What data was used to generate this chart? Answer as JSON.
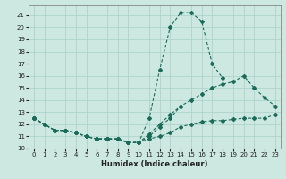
{
  "xlabel": "Humidex (Indice chaleur)",
  "background_color": "#cde8e0",
  "grid_color": "#a8d0c8",
  "line_color": "#1a6b5a",
  "xlim": [
    -0.5,
    23.5
  ],
  "ylim": [
    10.0,
    21.8
  ],
  "yticks": [
    10,
    11,
    12,
    13,
    14,
    15,
    16,
    17,
    18,
    19,
    20,
    21
  ],
  "xticks": [
    0,
    1,
    2,
    3,
    4,
    5,
    6,
    7,
    8,
    9,
    10,
    11,
    12,
    13,
    14,
    15,
    16,
    17,
    18,
    19,
    20,
    21,
    22,
    23
  ],
  "series": [
    {
      "x": [
        0,
        1,
        2,
        3,
        4,
        5,
        6,
        7,
        8,
        9,
        10,
        11,
        12,
        13,
        14,
        15,
        16,
        17,
        18
      ],
      "y": [
        12.5,
        12.0,
        11.5,
        11.5,
        11.3,
        11.0,
        10.8,
        10.8,
        10.8,
        10.5,
        10.5,
        12.5,
        16.5,
        20.0,
        21.2,
        21.2,
        20.5,
        17.0,
        15.8
      ]
    },
    {
      "x": [
        0,
        1,
        2,
        3,
        4,
        5,
        6,
        7,
        8,
        9,
        10,
        11,
        12,
        13,
        14,
        15,
        16,
        17,
        18,
        19,
        20,
        21,
        22,
        23
      ],
      "y": [
        12.5,
        12.0,
        11.5,
        11.5,
        11.3,
        11.0,
        10.8,
        10.8,
        10.8,
        10.5,
        10.5,
        11.2,
        12.0,
        12.8,
        13.5,
        14.0,
        14.5,
        15.0,
        15.3,
        15.5,
        16.0,
        15.0,
        14.2,
        13.5
      ]
    },
    {
      "x": [
        0,
        1,
        2,
        3,
        4,
        5,
        6,
        7,
        8,
        9,
        10,
        11,
        12,
        13,
        14,
        15,
        16,
        17,
        18,
        19,
        20,
        21,
        22,
        23
      ],
      "y": [
        12.5,
        12.0,
        11.5,
        11.5,
        11.3,
        11.0,
        10.8,
        10.8,
        10.8,
        10.5,
        10.5,
        10.8,
        11.0,
        11.3,
        11.8,
        12.0,
        12.2,
        12.3,
        12.3,
        12.4,
        12.5,
        12.5,
        12.5,
        12.8
      ]
    },
    {
      "x": [
        0,
        1,
        2,
        3,
        4,
        5,
        6,
        7,
        8,
        9,
        10,
        11,
        12,
        13,
        14
      ],
      "y": [
        12.5,
        12.0,
        11.5,
        11.5,
        11.3,
        11.0,
        10.8,
        10.8,
        10.8,
        10.5,
        10.5,
        11.0,
        11.8,
        12.5,
        13.5
      ]
    }
  ]
}
